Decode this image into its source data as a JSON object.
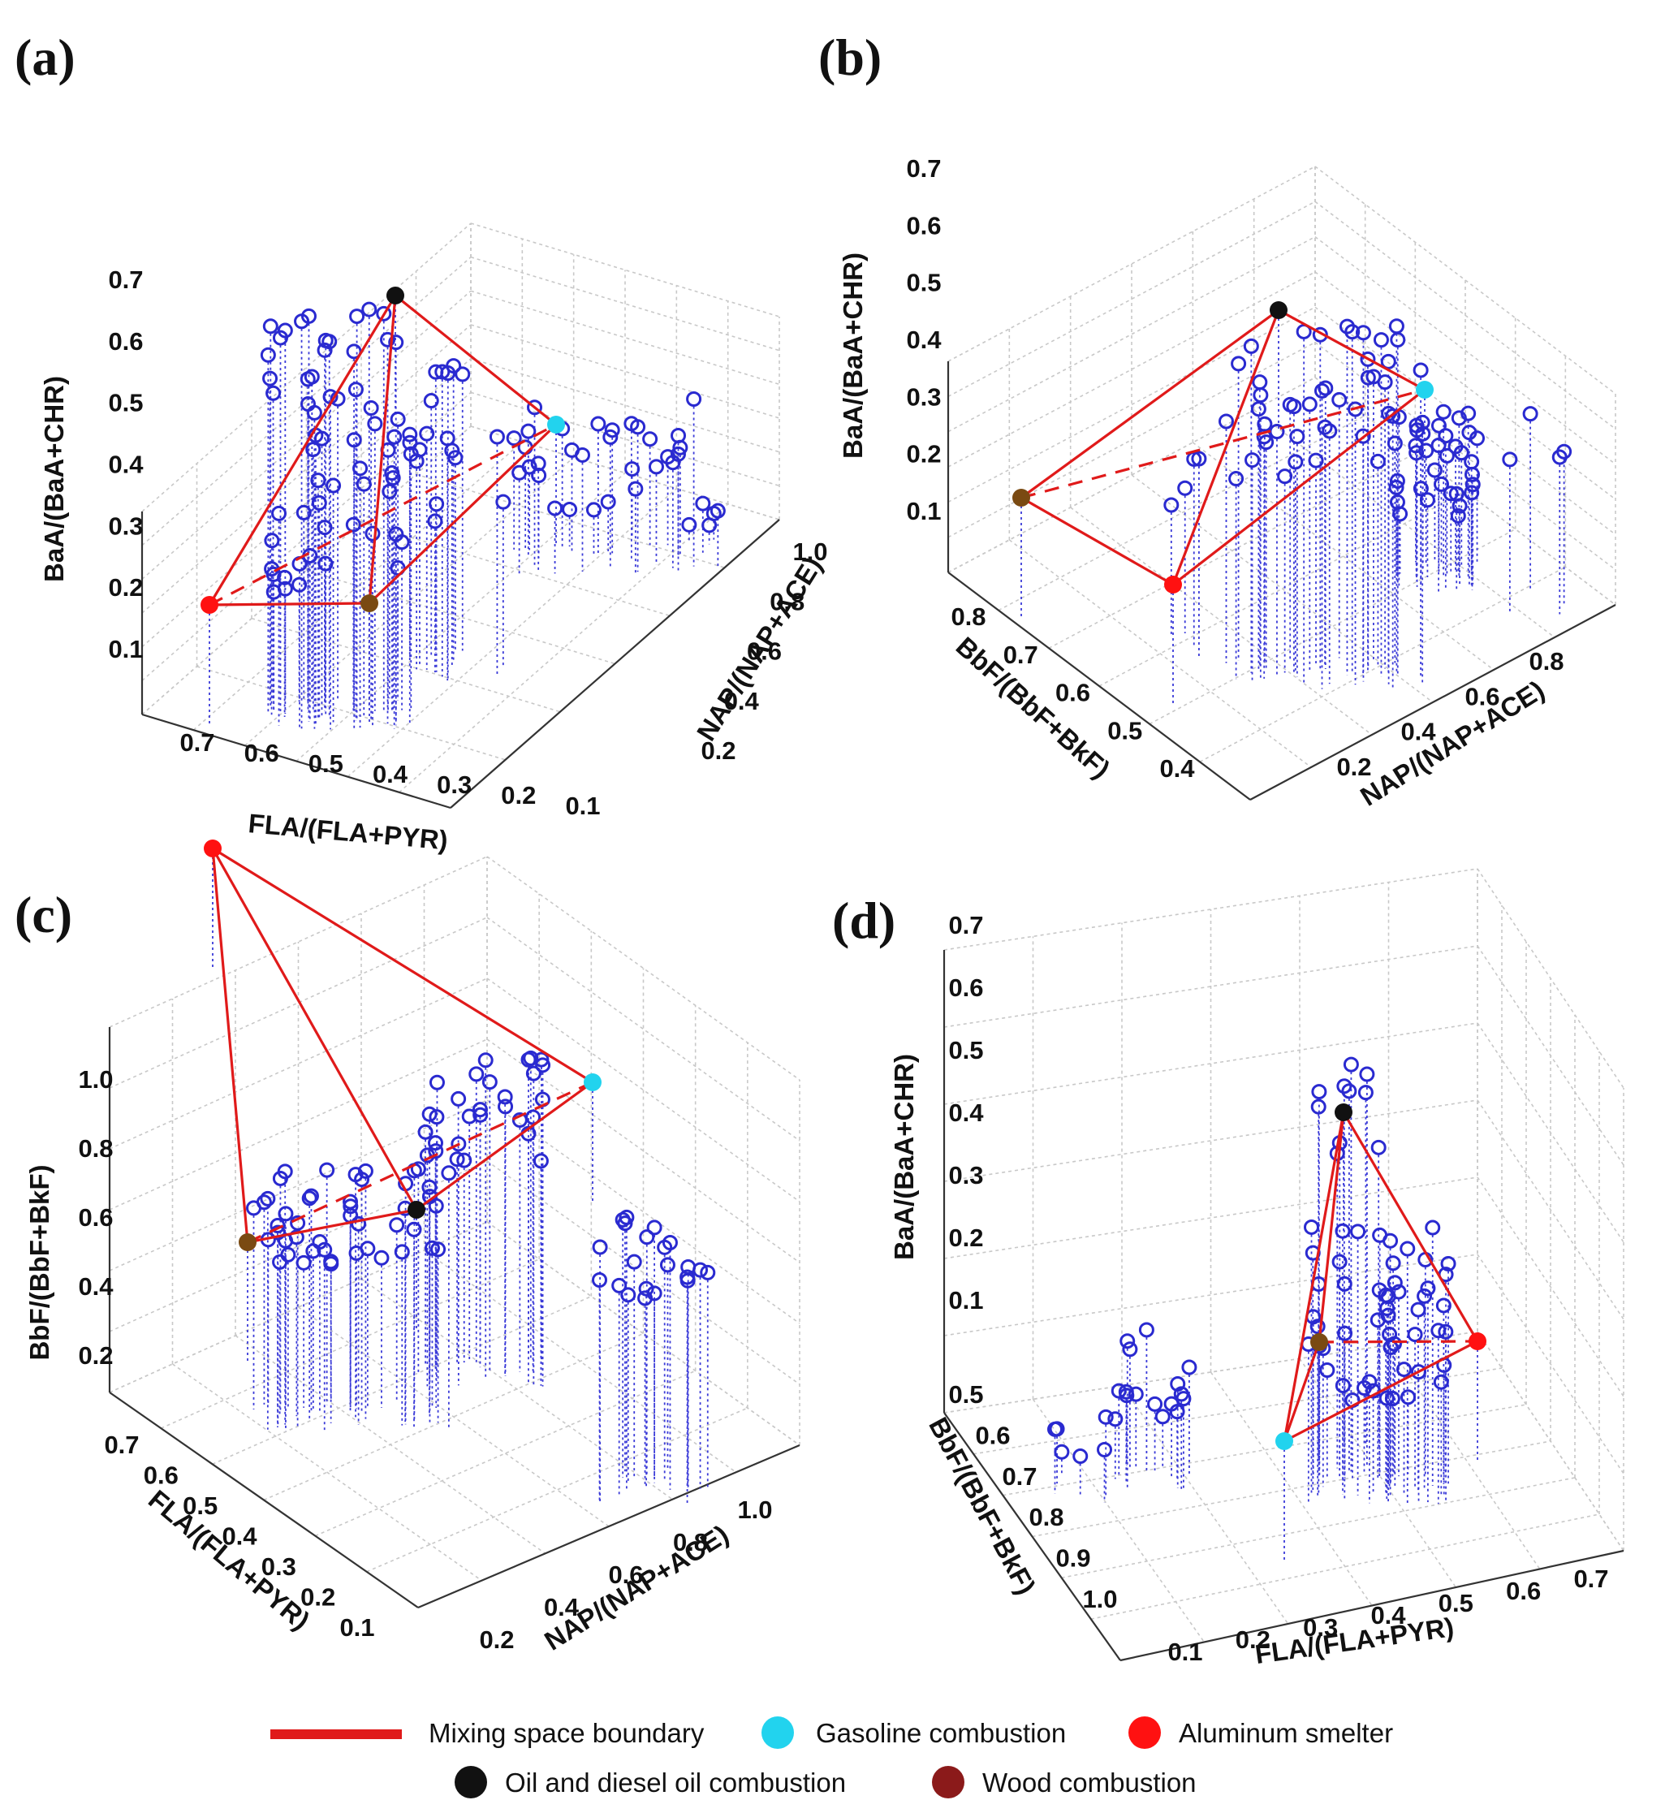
{
  "chart_data": [
    {
      "type": "scatter",
      "panel": "(a)",
      "zlabel": "BaA/(BaA+CHR)",
      "xlabel": "FLA/(FLA+PYR)",
      "ylabel": "NAP/(NAP+ACE)",
      "z_ticks": [
        "0.1",
        "0.2",
        "0.3",
        "0.4",
        "0.5",
        "0.6",
        "0.7"
      ],
      "x_ticks": [
        "0.7",
        "0.6",
        "0.5",
        "0.4",
        "0.3",
        "0.2",
        "0.1"
      ],
      "y_ticks": [
        "0.2",
        "0.4",
        "0.6",
        "0.8",
        "1.0"
      ]
    },
    {
      "type": "scatter",
      "panel": "(b)",
      "zlabel": "BaA/(BaA+CHR)",
      "xlabel": "BbF/(BbF+BkF)",
      "ylabel": "NAP/(NAP+ACE)",
      "z_ticks": [
        "0.1",
        "0.2",
        "0.3",
        "0.4",
        "0.5",
        "0.6",
        "0.7"
      ],
      "x_ticks": [
        "0.8",
        "0.7",
        "0.6",
        "0.5",
        "0.4"
      ],
      "y_ticks": [
        "0.2",
        "0.4",
        "0.6",
        "0.8"
      ]
    },
    {
      "type": "scatter",
      "panel": "(c)",
      "zlabel": "BbF/(BbF+BkF)",
      "xlabel": "FLA/(FLA+PYR)",
      "ylabel": "NAP/(NAP+ACE)",
      "z_ticks": [
        "0.2",
        "0.4",
        "0.6",
        "0.8",
        "1.0"
      ],
      "x_ticks": [
        "0.7",
        "0.6",
        "0.5",
        "0.4",
        "0.3",
        "0.2",
        "0.1"
      ],
      "y_ticks": [
        "0.2",
        "0.4",
        "0.6",
        "0.8",
        "1.0"
      ]
    },
    {
      "type": "scatter",
      "panel": "(d)",
      "zlabel": "BaA/(BaA+CHR)",
      "xlabel": "BbF/(BbF+BkF)",
      "ylabel": "FLA/(FLA+PYR)",
      "z_ticks": [
        "0.1",
        "0.2",
        "0.3",
        "0.4",
        "0.5",
        "0.6",
        "0.7"
      ],
      "x_ticks": [
        "0.5",
        "0.6",
        "0.7",
        "0.8",
        "0.9",
        "1.0"
      ],
      "y_ticks": [
        "0.1",
        "0.2",
        "0.3",
        "0.4",
        "0.5",
        "0.6",
        "0.7"
      ]
    }
  ],
  "legend": [
    {
      "label": "Mixing space boundary",
      "kind": "line",
      "color": "#e01a1a"
    },
    {
      "label": "Gasoline combustion",
      "kind": "dot",
      "color": "#22d3ee"
    },
    {
      "label": "Aluminum smelter",
      "kind": "dot",
      "color": "#ff1111"
    },
    {
      "label": "Oil and diesel oil combustion",
      "kind": "dot",
      "color": "#111111"
    },
    {
      "label": "Wood combustion",
      "kind": "dot",
      "color": "#8b1a1a"
    }
  ],
  "colors": {
    "sample_points": "#2a2ad0",
    "mixing_boundary": "#e01a1a",
    "gasoline": "#22d3ee",
    "aluminum": "#ff1111",
    "oil_diesel": "#111111",
    "wood": "#7a4a12"
  }
}
